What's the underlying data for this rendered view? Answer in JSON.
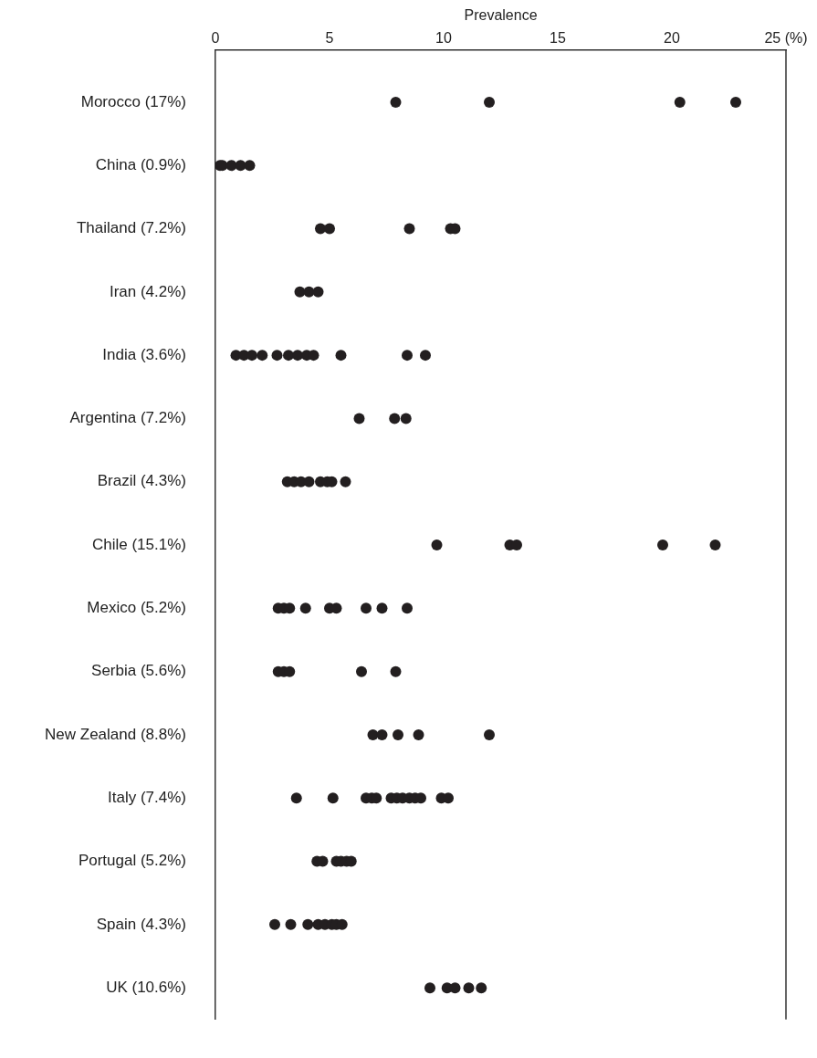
{
  "chart_data": {
    "type": "scatter",
    "orientation": "horizontal",
    "xlabel": "Prevalence",
    "categories": [
      "Morocco (17%)",
      "China (0.9%)",
      "Thailand (7.2%)",
      "Iran (4.2%)",
      "India (3.6%)",
      "Argentina (7.2%)",
      "Brazil (4.3%)",
      "Chile (15.1%)",
      "Mexico (5.2%)",
      "Serbia (5.6%)",
      "New Zealand (8.8%)",
      "Italy (7.4%)",
      "Portugal (5.2%)",
      "Spain (4.3%)",
      "UK (10.6%)"
    ],
    "xlim": [
      0,
      25
    ],
    "xticks": [
      0,
      5,
      10,
      15,
      20,
      {
        "value": 25,
        "label": "25 (%)"
      }
    ],
    "grid": false,
    "legend": false,
    "marker": "circle",
    "series": [
      {
        "color": "#231f20",
        "x": [
          "Morocco (17%)",
          "Morocco (17%)",
          "Morocco (17%)",
          "Morocco (17%)",
          "China (0.9%)",
          "China (0.9%)",
          "China (0.9%)",
          "China (0.9%)",
          "China (0.9%)",
          "Thailand (7.2%)",
          "Thailand (7.2%)",
          "Thailand (7.2%)",
          "Thailand (7.2%)",
          "Thailand (7.2%)",
          "Iran (4.2%)",
          "Iran (4.2%)",
          "Iran (4.2%)",
          "India (3.6%)",
          "India (3.6%)",
          "India (3.6%)",
          "India (3.6%)",
          "India (3.6%)",
          "India (3.6%)",
          "India (3.6%)",
          "India (3.6%)",
          "India (3.6%)",
          "India (3.6%)",
          "India (3.6%)",
          "India (3.6%)",
          "Argentina (7.2%)",
          "Argentina (7.2%)",
          "Argentina (7.2%)",
          "Brazil (4.3%)",
          "Brazil (4.3%)",
          "Brazil (4.3%)",
          "Brazil (4.3%)",
          "Brazil (4.3%)",
          "Brazil (4.3%)",
          "Brazil (4.3%)",
          "Brazil (4.3%)",
          "Chile (15.1%)",
          "Chile (15.1%)",
          "Chile (15.1%)",
          "Chile (15.1%)",
          "Chile (15.1%)",
          "Mexico (5.2%)",
          "Mexico (5.2%)",
          "Mexico (5.2%)",
          "Mexico (5.2%)",
          "Mexico (5.2%)",
          "Mexico (5.2%)",
          "Mexico (5.2%)",
          "Mexico (5.2%)",
          "Mexico (5.2%)",
          "Serbia (5.6%)",
          "Serbia (5.6%)",
          "Serbia (5.6%)",
          "Serbia (5.6%)",
          "Serbia (5.6%)",
          "New Zealand (8.8%)",
          "New Zealand (8.8%)",
          "New Zealand (8.8%)",
          "New Zealand (8.8%)",
          "New Zealand (8.8%)",
          "Italy (7.4%)",
          "Italy (7.4%)",
          "Italy (7.4%)",
          "Italy (7.4%)",
          "Italy (7.4%)",
          "Italy (7.4%)",
          "Italy (7.4%)",
          "Italy (7.4%)",
          "Italy (7.4%)",
          "Italy (7.4%)",
          "Italy (7.4%)",
          "Italy (7.4%)",
          "Italy (7.4%)",
          "Portugal (5.2%)",
          "Portugal (5.2%)",
          "Portugal (5.2%)",
          "Portugal (5.2%)",
          "Portugal (5.2%)",
          "Portugal (5.2%)",
          "Spain (4.3%)",
          "Spain (4.3%)",
          "Spain (4.3%)",
          "Spain (4.3%)",
          "Spain (4.3%)",
          "Spain (4.3%)",
          "Spain (4.3%)",
          "Spain (4.3%)",
          "UK (10.6%)",
          "UK (10.6%)",
          "UK (10.6%)",
          "UK (10.6%)",
          "UK (10.6%)"
        ],
        "values": [
          7.9,
          12.0,
          20.35,
          22.8,
          0.2,
          0.3,
          0.7,
          1.1,
          1.5,
          4.6,
          5.0,
          8.5,
          10.3,
          10.5,
          3.7,
          4.1,
          4.5,
          0.9,
          1.25,
          1.6,
          2.05,
          2.7,
          3.2,
          3.6,
          4.0,
          4.3,
          5.5,
          8.4,
          9.2,
          6.3,
          7.85,
          8.35,
          3.15,
          3.45,
          3.75,
          4.1,
          4.6,
          4.9,
          5.1,
          5.7,
          9.7,
          12.9,
          13.2,
          19.6,
          21.9,
          2.75,
          3.0,
          3.25,
          3.95,
          5.0,
          5.3,
          6.6,
          7.3,
          8.4,
          2.75,
          3.0,
          3.25,
          6.4,
          7.9,
          6.9,
          7.3,
          8.0,
          8.9,
          12.0,
          3.55,
          5.15,
          6.6,
          6.85,
          7.05,
          7.7,
          7.95,
          8.2,
          8.5,
          8.75,
          9.0,
          9.9,
          10.2,
          4.45,
          4.7,
          5.3,
          5.5,
          5.75,
          5.95,
          2.6,
          3.3,
          4.05,
          4.5,
          4.8,
          5.1,
          5.3,
          5.55,
          9.4,
          10.15,
          10.5,
          11.1,
          11.65
        ]
      }
    ]
  }
}
